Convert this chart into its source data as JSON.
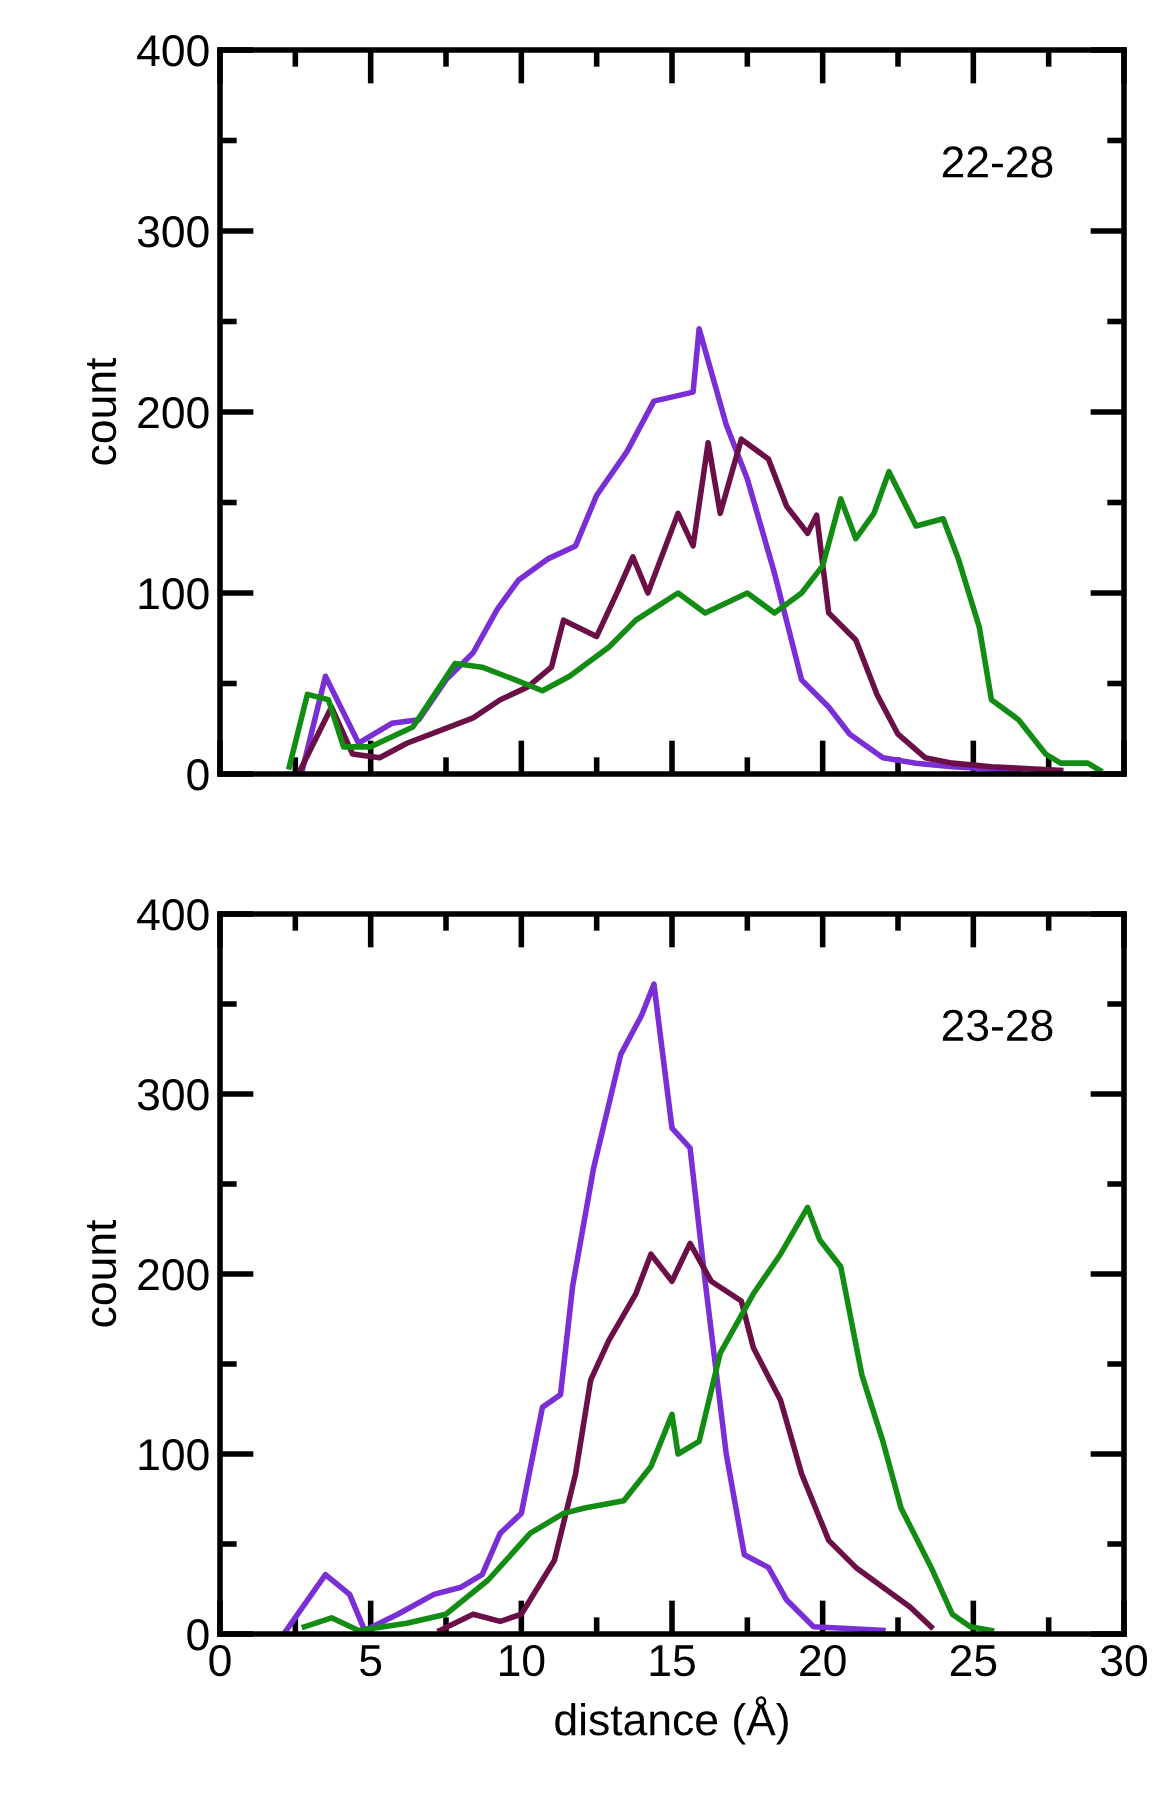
{
  "chart_data": [
    {
      "type": "line",
      "ylabel": "count",
      "annotations": [
        "22-28"
      ],
      "tick_labels": "y",
      "xlim": [
        0,
        30
      ],
      "ylim": [
        0,
        400
      ],
      "xticks": [
        0,
        {
          "value": 2.5,
          "label": null
        },
        5,
        {
          "value": 7.5,
          "label": null
        },
        10,
        {
          "value": 12.5,
          "label": null
        },
        15,
        {
          "value": 17.5,
          "label": null
        },
        20,
        {
          "value": 22.5,
          "label": null
        },
        25,
        {
          "value": 27.5,
          "label": null
        },
        30
      ],
      "yticks": [
        0,
        {
          "value": 50,
          "label": null
        },
        100,
        {
          "value": 150,
          "label": null
        },
        200,
        {
          "value": 250,
          "label": null
        },
        300,
        {
          "value": 350,
          "label": null
        },
        400
      ],
      "series": [
        {
          "color": "#7a2fd6",
          "x": [
            2.7,
            3.5,
            4.6,
            5.7,
            6.6,
            7.5,
            8.4,
            9.2,
            9.9,
            10.9,
            11.8,
            12.5,
            13.5,
            14.4,
            15.7,
            15.9,
            16.8,
            17.5,
            18.4,
            19.3,
            20.2,
            20.9,
            22,
            23.1,
            24.3,
            26.5
          ],
          "values": [
            0,
            54,
            17,
            28,
            30,
            52,
            67,
            91,
            107,
            119,
            126,
            154,
            178,
            206,
            211,
            246,
            193,
            163,
            111,
            52,
            37,
            22,
            9,
            6,
            4,
            2
          ]
        },
        {
          "color": "#6b0f47",
          "x": [
            2.6,
            3.7,
            4.4,
            5.3,
            6.2,
            7.3,
            8.4,
            9.3,
            10.2,
            11,
            11.4,
            12.5,
            13.2,
            13.7,
            14.2,
            15.2,
            15.7,
            16.2,
            16.6,
            17.3,
            18.2,
            18.8,
            19.5,
            19.8,
            20.2,
            21.1,
            21.8,
            22.5,
            23.4,
            24.3,
            25.6,
            27.9
          ],
          "values": [
            0,
            37,
            11,
            9,
            17,
            24,
            31,
            41,
            48,
            59,
            85,
            76,
            101,
            120,
            100,
            144,
            126,
            183,
            144,
            185,
            174,
            148,
            133,
            143,
            89,
            74,
            44,
            22,
            9,
            6,
            4,
            2
          ]
        },
        {
          "color": "#128c12",
          "x": [
            2.3,
            2.9,
            3.6,
            4.1,
            5,
            6.4,
            7.8,
            8.7,
            9.8,
            10.7,
            11.6,
            12.9,
            13.8,
            15.2,
            16.1,
            17.5,
            18.4,
            19.3,
            20,
            20.6,
            21.1,
            21.7,
            22.2,
            23.1,
            24,
            24.5,
            25.2,
            25.6,
            26.5,
            27.4,
            27.9,
            28.8,
            29.2
          ],
          "values": [
            4,
            44,
            41,
            15,
            15,
            26,
            61,
            59,
            52,
            46,
            54,
            70,
            85,
            100,
            89,
            100,
            89,
            100,
            115,
            152,
            130,
            144,
            167,
            137,
            141,
            119,
            81,
            41,
            30,
            11,
            6,
            6,
            2
          ]
        }
      ]
    },
    {
      "type": "line",
      "ylabel": "count",
      "xlabel": "distance (Å)",
      "annotations": [
        "23-28"
      ],
      "xlim": [
        0,
        30
      ],
      "ylim": [
        0,
        400
      ],
      "xticks": [
        0,
        {
          "value": 2.5,
          "label": null
        },
        5,
        {
          "value": 7.5,
          "label": null
        },
        10,
        {
          "value": 12.5,
          "label": null
        },
        15,
        {
          "value": 17.5,
          "label": null
        },
        20,
        {
          "value": 22.5,
          "label": null
        },
        25,
        {
          "value": 27.5,
          "label": null
        },
        30
      ],
      "yticks": [
        0,
        {
          "value": 50,
          "label": null
        },
        100,
        {
          "value": 150,
          "label": null
        },
        200,
        {
          "value": 250,
          "label": null
        },
        300,
        {
          "value": 350,
          "label": null
        },
        400
      ],
      "series": [
        {
          "color": "#7a2fd6",
          "x": [
            2.2,
            3.5,
            4.3,
            4.8,
            5.9,
            7.1,
            8,
            8.7,
            9.3,
            10,
            10.7,
            11.3,
            11.7,
            12.4,
            13.3,
            14,
            14.4,
            15,
            15.6,
            16.1,
            16.8,
            17.4,
            18.2,
            18.8,
            19.7,
            22
          ],
          "values": [
            2,
            33,
            22,
            2,
            11,
            22,
            26,
            33,
            56,
            67,
            126,
            133,
            193,
            259,
            322,
            344,
            361,
            281,
            270,
            196,
            100,
            44,
            37,
            19,
            4,
            2
          ]
        },
        {
          "color": "#6b0f47",
          "x": [
            7.3,
            8.4,
            9.3,
            10,
            11.1,
            11.8,
            12.3,
            12.9,
            13.8,
            14.3,
            15,
            15.6,
            16.3,
            17.3,
            17.7,
            18.6,
            19.3,
            20.2,
            21.1,
            22,
            22.9,
            23.6
          ],
          "values": [
            2,
            11,
            7,
            11,
            41,
            89,
            141,
            163,
            189,
            211,
            196,
            217,
            196,
            185,
            159,
            130,
            89,
            52,
            37,
            26,
            15,
            4
          ]
        },
        {
          "color": "#128c12",
          "x": [
            2.8,
            3.7,
            4.6,
            6.2,
            7.5,
            8.9,
            10.3,
            11.4,
            12.1,
            13.4,
            14.3,
            15,
            15.2,
            15.9,
            16.6,
            17.7,
            18.6,
            19.5,
            19.9,
            20.6,
            21.3,
            22,
            22.6,
            23.6,
            24.3,
            24.9,
            25.6
          ],
          "values": [
            4,
            9,
            2,
            6,
            11,
            30,
            56,
            67,
            70,
            74,
            93,
            122,
            100,
            107,
            156,
            189,
            211,
            237,
            219,
            204,
            144,
            107,
            70,
            37,
            11,
            4,
            2
          ]
        }
      ]
    }
  ]
}
